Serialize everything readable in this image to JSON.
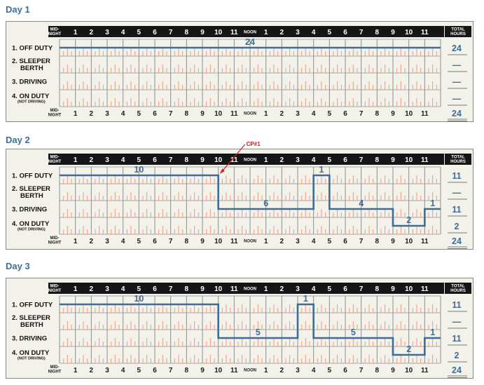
{
  "header": {
    "top_hours": [
      "1",
      "2",
      "3",
      "4",
      "5",
      "6",
      "7",
      "8",
      "9",
      "10",
      "11",
      "NOON",
      "1",
      "2",
      "3",
      "4",
      "5",
      "6",
      "7",
      "8",
      "9",
      "10",
      "11"
    ],
    "bottom_hours": [
      "1",
      "2",
      "3",
      "4",
      "5",
      "6",
      "7",
      "8",
      "9",
      "10",
      "11",
      "NOON",
      "1",
      "2",
      "3",
      "4",
      "5",
      "6",
      "7",
      "8",
      "9",
      "10",
      "11"
    ],
    "midnight_line1": "MID-",
    "midnight_line2": "NIGHT",
    "total_line1": "TOTAL",
    "total_line2": "HOURS"
  },
  "rows": [
    {
      "label": "1. OFF DUTY",
      "sub": ""
    },
    {
      "label": "2. SLEEPER",
      "label2": "BERTH",
      "sub": ""
    },
    {
      "label": "3. DRIVING",
      "sub": ""
    },
    {
      "label": "4. ON DUTY",
      "sub": "(NOT DRIVING)"
    }
  ],
  "colors": {
    "line": "#3d6d98",
    "callout": "#cc2222",
    "tick": "#f09a7e"
  },
  "days": [
    {
      "title": "Day 1",
      "segments": [
        {
          "status": 1,
          "start": 0,
          "end": 24,
          "label": "24"
        }
      ],
      "totals": [
        "24",
        "—",
        "—",
        "—"
      ],
      "grand_total": "24"
    },
    {
      "title": "Day 2",
      "segments": [
        {
          "status": 1,
          "start": 0,
          "end": 10,
          "label": "10"
        },
        {
          "status": 3,
          "start": 10,
          "end": 16,
          "label": "6"
        },
        {
          "status": 1,
          "start": 16,
          "end": 17,
          "label": "1"
        },
        {
          "status": 3,
          "start": 17,
          "end": 21,
          "label": "4"
        },
        {
          "status": 4,
          "start": 21,
          "end": 23,
          "label": "2"
        },
        {
          "status": 3,
          "start": 23,
          "end": 24,
          "label": "1"
        }
      ],
      "totals": [
        "11",
        "—",
        "11",
        "2"
      ],
      "grand_total": "24",
      "callout": {
        "text": "CP#1",
        "hour": 10
      }
    },
    {
      "title": "Day 3",
      "segments": [
        {
          "status": 1,
          "start": 0,
          "end": 10,
          "label": "10"
        },
        {
          "status": 3,
          "start": 10,
          "end": 15,
          "label": "5"
        },
        {
          "status": 1,
          "start": 15,
          "end": 16,
          "label": "1"
        },
        {
          "status": 3,
          "start": 16,
          "end": 21,
          "label": "5"
        },
        {
          "status": 4,
          "start": 21,
          "end": 23,
          "label": "2"
        },
        {
          "status": 3,
          "start": 23,
          "end": 24,
          "label": "1"
        }
      ],
      "totals": [
        "11",
        "—",
        "11",
        "2"
      ],
      "grand_total": "24"
    }
  ]
}
